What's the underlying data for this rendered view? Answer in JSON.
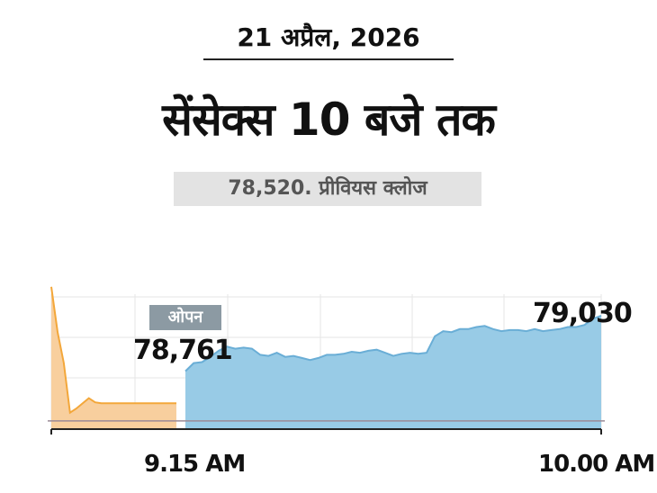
{
  "header": {
    "date": "21 अप्रैल, 2026",
    "title": "सेंसेक्स 10 बजे तक",
    "previous_close": "78,520. प्रीवियस क्लोज"
  },
  "annotations": {
    "open_label": "ओपन",
    "open_value": "78,761",
    "close_value": "79,030"
  },
  "colors": {
    "pre_open_fill": "#f8cf9e",
    "pre_open_line": "#f3a73a",
    "session_fill": "#98cbe6",
    "session_line": "#6aaed6",
    "baseline": "#9a8a96",
    "grid": "#e6e6e6",
    "axis": "#222222",
    "badge": "#8c9aa3"
  },
  "chart_data": {
    "type": "area",
    "x_tick_labels": [
      "9.15 AM",
      "10.00 AM"
    ],
    "baseline_value": 78520,
    "ylim": [
      78480,
      79230
    ],
    "grid": true,
    "series": [
      {
        "role": "pre-open",
        "x": [
          0,
          0.05,
          0.1,
          0.15,
          0.2,
          0.3,
          0.35,
          0.4,
          0.5,
          0.6,
          0.7,
          0.8,
          0.9,
          1.0
        ],
        "values": [
          79170,
          78950,
          78800,
          78560,
          78580,
          78630,
          78610,
          78605,
          78605,
          78605,
          78605,
          78605,
          78605,
          78605
        ]
      },
      {
        "role": "session",
        "x": [
          0,
          0.02,
          0.04,
          0.06,
          0.08,
          0.1,
          0.12,
          0.14,
          0.16,
          0.18,
          0.2,
          0.22,
          0.24,
          0.26,
          0.28,
          0.3,
          0.32,
          0.34,
          0.36,
          0.38,
          0.4,
          0.42,
          0.44,
          0.46,
          0.48,
          0.5,
          0.52,
          0.54,
          0.56,
          0.58,
          0.6,
          0.62,
          0.64,
          0.66,
          0.68,
          0.7,
          0.72,
          0.74,
          0.76,
          0.78,
          0.8,
          0.82,
          0.84,
          0.86,
          0.88,
          0.9,
          0.92,
          0.94,
          0.96,
          0.98,
          1.0
        ],
        "values": [
          78761,
          78800,
          78805,
          78830,
          78860,
          78880,
          78870,
          78875,
          78870,
          78840,
          78835,
          78850,
          78830,
          78835,
          78825,
          78815,
          78825,
          78840,
          78840,
          78845,
          78855,
          78850,
          78860,
          78865,
          78850,
          78835,
          78845,
          78850,
          78845,
          78850,
          78930,
          78955,
          78950,
          78965,
          78965,
          78975,
          78980,
          78965,
          78955,
          78960,
          78960,
          78955,
          78965,
          78955,
          78960,
          78965,
          78975,
          78975,
          78985,
          79015,
          79030
        ]
      }
    ]
  }
}
